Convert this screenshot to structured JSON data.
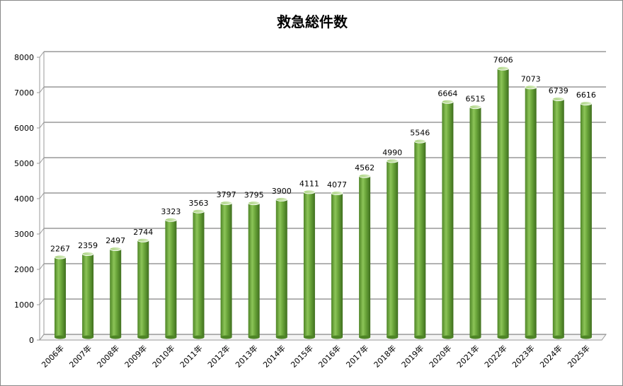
{
  "chart_data": {
    "type": "bar",
    "title": "救急総件数",
    "xlabel": "",
    "ylabel": "",
    "ylim": [
      0,
      8000
    ],
    "yticks": [
      0,
      1000,
      2000,
      3000,
      4000,
      5000,
      6000,
      7000,
      8000
    ],
    "grid": true,
    "legend": "none",
    "categories": [
      "2006年",
      "2007年",
      "2008年",
      "2009年",
      "2010年",
      "2011年",
      "2012年",
      "2013年",
      "2014年",
      "2015年",
      "2016年",
      "2017年",
      "2018年",
      "2019年",
      "2020年",
      "2021年",
      "2022年",
      "2023年",
      "2024年",
      "2025年"
    ],
    "values": [
      2267,
      2359,
      2497,
      2744,
      3323,
      3563,
      3797,
      3795,
      3900,
      4111,
      4077,
      4562,
      4990,
      5546,
      6664,
      6515,
      7606,
      7073,
      6739,
      6616
    ],
    "bar_color": "#6aa53a"
  }
}
